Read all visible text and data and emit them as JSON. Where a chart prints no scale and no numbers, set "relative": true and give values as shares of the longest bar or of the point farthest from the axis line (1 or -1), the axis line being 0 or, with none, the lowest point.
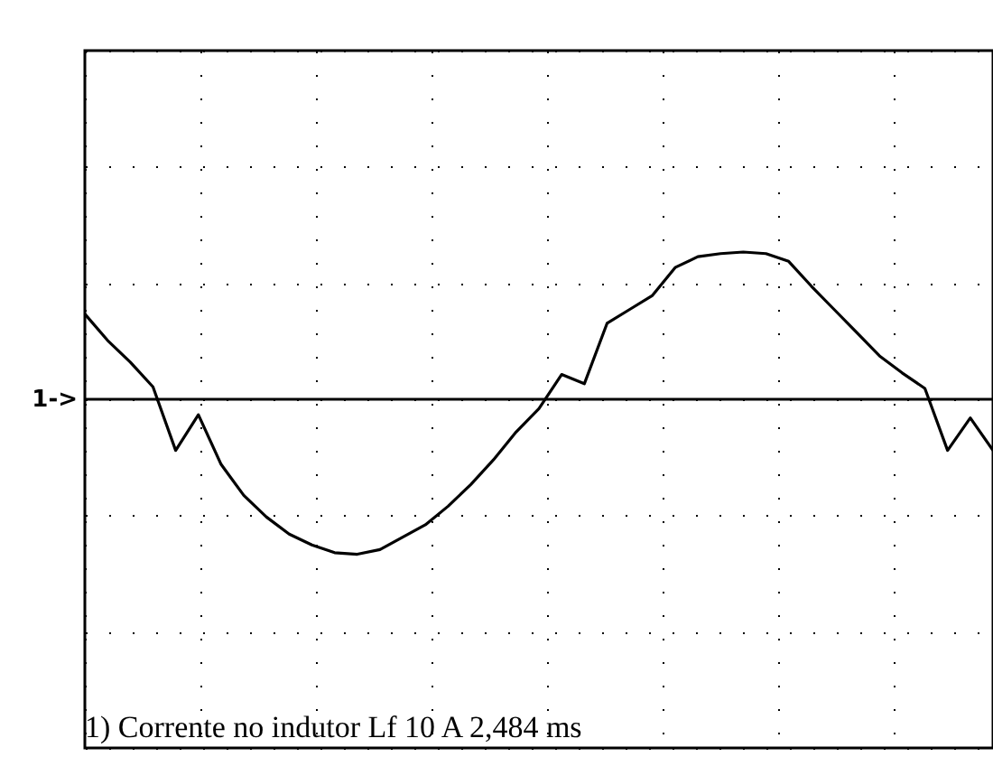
{
  "chart_data": {
    "type": "line",
    "relative": true,
    "grid": true,
    "categories": [
      null,
      null,
      null,
      null,
      null,
      null,
      null,
      null,
      null,
      null,
      null,
      null,
      null,
      null,
      null,
      null,
      null,
      null,
      null,
      null,
      null,
      null,
      null,
      null,
      null,
      null,
      null,
      null,
      null,
      null,
      null,
      null,
      null,
      null,
      null,
      null,
      null,
      null,
      null,
      null,
      null
    ],
    "series": [
      {
        "color": "#000000",
        "values": [
          0.55,
          0.38,
          0.24,
          0.08,
          -0.33,
          -0.1,
          -0.42,
          -0.62,
          -0.76,
          -0.87,
          -0.94,
          -0.99,
          -1,
          -0.97,
          -0.89,
          -0.81,
          -0.69,
          -0.55,
          -0.39,
          -0.21,
          -0.06,
          0.16,
          0.1,
          0.49,
          0.58,
          0.67,
          0.85,
          0.92,
          0.94,
          0.95,
          0.94,
          0.89,
          0.73,
          0.58,
          0.43,
          0.28,
          0.17,
          0.07,
          -0.33,
          -0.12,
          -0.33
        ]
      }
    ],
    "annotations": [
      "1) Corrente no indutor Lf 10 A 2,484 ms",
      "1->"
    ]
  }
}
